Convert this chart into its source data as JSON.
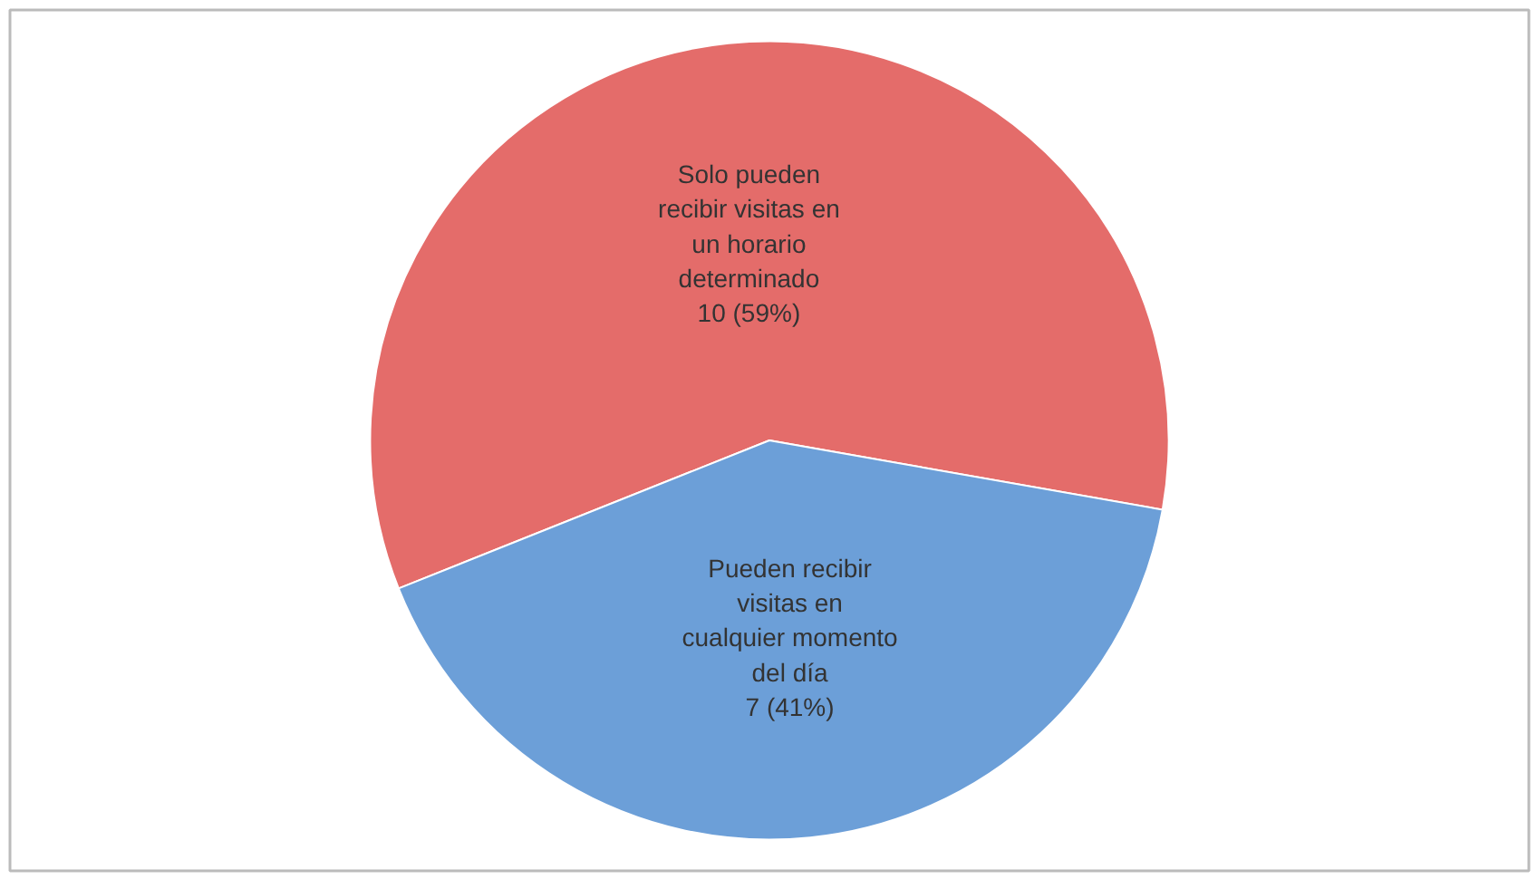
{
  "chart_data": {
    "type": "pie",
    "categories": [
      "Solo pueden recibir visitas en un horario determinado",
      "Pueden recibir visitas en cualquier momento del día"
    ],
    "values": [
      10,
      7
    ],
    "colors": [
      "#e46c6a",
      "#6c9fd8"
    ],
    "value_labels": [
      "10 (59%)",
      "7 (41%)"
    ],
    "legend": false
  }
}
